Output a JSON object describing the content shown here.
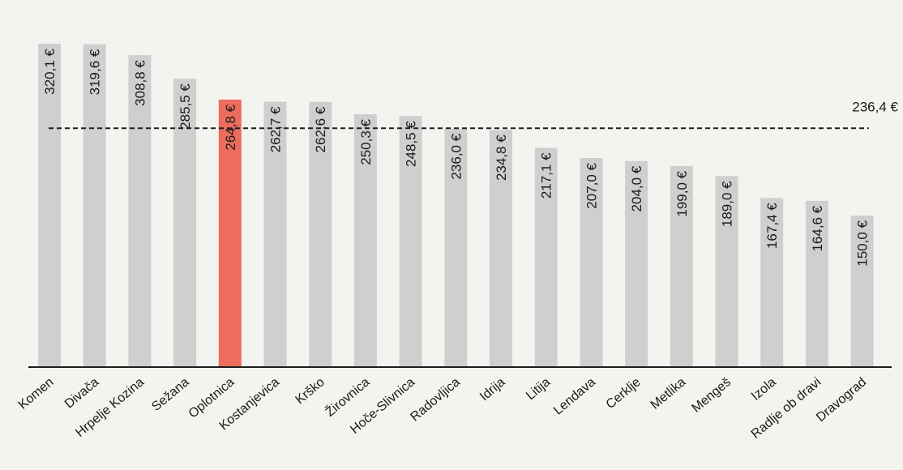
{
  "chart_data": {
    "type": "bar",
    "categories": [
      "Komen",
      "Divača",
      "Hrpelje Kozina",
      "Sežana",
      "Oplotnica",
      "Kostanjevica",
      "Krško",
      "Žirovnica",
      "Hoče-Slivnica",
      "Radovljica",
      "Idrija",
      "Litija",
      "Lendava",
      "Cerklje",
      "Metlika",
      "Mengeš",
      "Izola",
      "Radlje ob dravi",
      "Dravograd"
    ],
    "values": [
      320.1,
      319.6,
      308.8,
      285.5,
      264.8,
      262.7,
      262.6,
      250.3,
      248.5,
      236.0,
      234.8,
      217.1,
      207.0,
      204.0,
      199.0,
      189.0,
      167.4,
      164.6,
      150.0
    ],
    "value_labels": [
      "320,1 €",
      "319,6 €",
      "308,8 €",
      "285,5 €",
      "264,8 €",
      "262,7 €",
      "262,6 €",
      "250,3 €",
      "248,5 €",
      "236,0 €",
      "234,8 €",
      "217,1 €",
      "207,0 €",
      "204,0 €",
      "199,0 €",
      "189,0 €",
      "167,4 €",
      "164,6 €",
      "150,0 €"
    ],
    "highlighted_category": "Oplotnica",
    "average": 236.4,
    "average_label": "236,4 €",
    "title": "",
    "xlabel": "",
    "ylabel": "",
    "ylim": [
      0,
      320.1
    ],
    "colors": {
      "bar": "#cfcfcf",
      "highlight": "#ec6d5d",
      "average_line": "#1e1e1e",
      "axis": "#1e1e1e"
    }
  }
}
